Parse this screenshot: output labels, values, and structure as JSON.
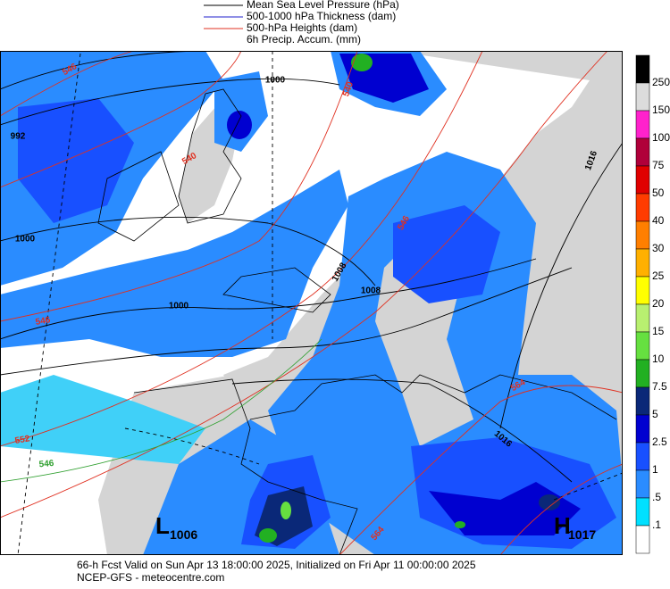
{
  "legend": [
    "Mean Sea Level Pressure (hPa)",
    "500-1000 hPa Thickness (dam)",
    "500-hPa Heights (dam)",
    "6h Precip. Accum. (mm)"
  ],
  "colorbar": {
    "labels": [
      "250",
      "150",
      "100",
      "75",
      "50",
      "40",
      "30",
      "25",
      "20",
      "15",
      "10",
      "7.5",
      "5",
      "2.5",
      "1",
      ".5",
      ".1"
    ],
    "colors": [
      "#000000",
      "#dcdcdc",
      "#ff22cc",
      "#b0003a",
      "#e00000",
      "#ff3c00",
      "#ff7f00",
      "#ffb000",
      "#ffff00",
      "#b8f070",
      "#66e040",
      "#22b022",
      "#0a2878",
      "#0000d0",
      "#1850ff",
      "#2a8cff",
      "#00e0ff",
      "#ffffff"
    ]
  },
  "contour_labels": [
    "1000",
    "992",
    "1000",
    "1000",
    "1008",
    "1008",
    "1016",
    "1016",
    "546",
    "540",
    "546",
    "552",
    "546",
    "564",
    "564",
    "546",
    "540"
  ],
  "lows": [
    {
      "symbol": "L",
      "value": "1006"
    }
  ],
  "highs": [
    {
      "symbol": "H",
      "value": "1017"
    }
  ],
  "footer": [
    "66-h Fcst Valid on Sun Apr 13 18:00:00 2025, Initialized on Fri Apr 11 00:00:00 2025",
    "NCEP-GFS  - meteocentre.com"
  ]
}
